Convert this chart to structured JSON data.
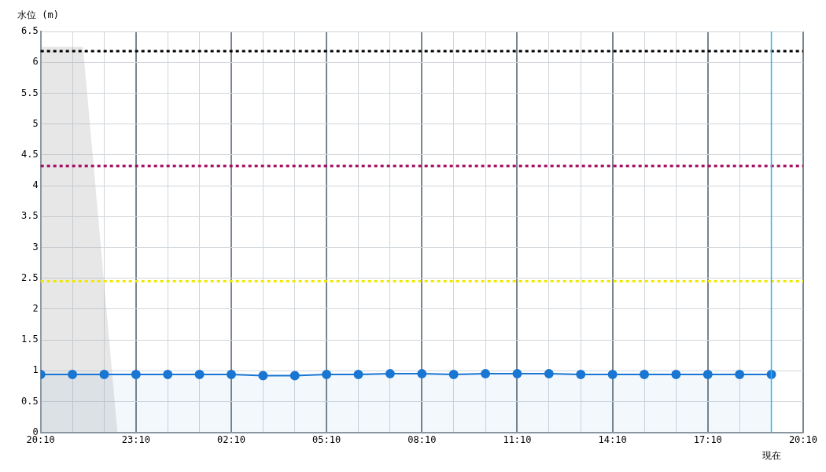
{
  "chart_data": {
    "type": "area",
    "ylabel": "水位 (m)",
    "series": [
      {
        "color": "#b0b0b0",
        "marker": "none",
        "x": [
          "--01-01T20:10",
          "--01-01T21:30",
          "--01-01T22:35"
        ],
        "values": [
          6.25,
          6.25,
          0
        ]
      },
      {
        "color": "#1976d2",
        "marker": "circle",
        "x": [
          "--01-01T20:10",
          "--01-01T21:10",
          "--01-01T22:10",
          "--01-01T23:10",
          "--01-02T00:10",
          "--01-02T01:10",
          "--01-02T02:10",
          "--01-02T03:10",
          "--01-02T04:10",
          "--01-02T05:10",
          "--01-02T06:10",
          "--01-02T07:10",
          "--01-02T08:10",
          "--01-02T09:10",
          "--01-02T10:10",
          "--01-02T11:10",
          "--01-02T12:10",
          "--01-02T13:10",
          "--01-02T14:10",
          "--01-02T15:10",
          "--01-02T16:10",
          "--01-02T17:10",
          "--01-02T18:10",
          "--01-02T19:10"
        ],
        "values": [
          0.94,
          0.94,
          0.94,
          0.94,
          0.94,
          0.94,
          0.94,
          0.92,
          0.92,
          0.94,
          0.94,
          0.95,
          0.95,
          0.94,
          0.95,
          0.95,
          0.95,
          0.94,
          0.94,
          0.94,
          0.94,
          0.94,
          0.94,
          0.94
        ]
      }
    ],
    "xlim": [
      "--01-01T20:10",
      "--01-02T20:10"
    ],
    "xticks": [
      {
        "value": "--01-01T20:10",
        "label": "20:10"
      },
      {
        "value": "--01-01T21:10",
        "label": null
      },
      {
        "value": "--01-01T22:10",
        "label": null
      },
      {
        "value": "--01-01T23:10",
        "label": "23:10"
      },
      {
        "value": "--01-02T00:10",
        "label": null
      },
      {
        "value": "--01-02T01:10",
        "label": null
      },
      {
        "value": "--01-02T02:10",
        "label": "02:10"
      },
      {
        "value": "--01-02T03:10",
        "label": null
      },
      {
        "value": "--01-02T04:10",
        "label": null
      },
      {
        "value": "--01-02T05:10",
        "label": "05:10"
      },
      {
        "value": "--01-02T06:10",
        "label": null
      },
      {
        "value": "--01-02T07:10",
        "label": null
      },
      {
        "value": "--01-02T08:10",
        "label": "08:10"
      },
      {
        "value": "--01-02T09:10",
        "label": null
      },
      {
        "value": "--01-02T10:10",
        "label": null
      },
      {
        "value": "--01-02T11:10",
        "label": "11:10"
      },
      {
        "value": "--01-02T12:10",
        "label": null
      },
      {
        "value": "--01-02T13:10",
        "label": null
      },
      {
        "value": "--01-02T14:10",
        "label": "14:10"
      },
      {
        "value": "--01-02T15:10",
        "label": null
      },
      {
        "value": "--01-02T16:10",
        "label": null
      },
      {
        "value": "--01-02T17:10",
        "label": "17:10"
      },
      {
        "value": "--01-02T18:10",
        "label": null
      },
      {
        "value": "--01-02T19:10",
        "label": null
      },
      {
        "value": "--01-02T20:10",
        "label": "20:10"
      }
    ],
    "ylim": [
      0,
      6.5
    ],
    "yticks": [
      0,
      0.5,
      1,
      1.5,
      2,
      2.5,
      3,
      3.5,
      4,
      4.5,
      5,
      5.5,
      6,
      6.5
    ],
    "grid": true,
    "legend": false,
    "ref_lines": [
      {
        "axis": "y",
        "value": 6.18,
        "color": "#000000",
        "line_style": "dotted"
      },
      {
        "axis": "y",
        "value": 4.32,
        "color": "#a0005a",
        "line_style": "dotted"
      },
      {
        "axis": "y",
        "value": 2.45,
        "color": "#f0e800",
        "line_style": "dotted"
      },
      {
        "axis": "x",
        "value": "--01-02T19:10",
        "label": "現在",
        "color": "#29b6f6",
        "line_style": "solid"
      }
    ]
  }
}
